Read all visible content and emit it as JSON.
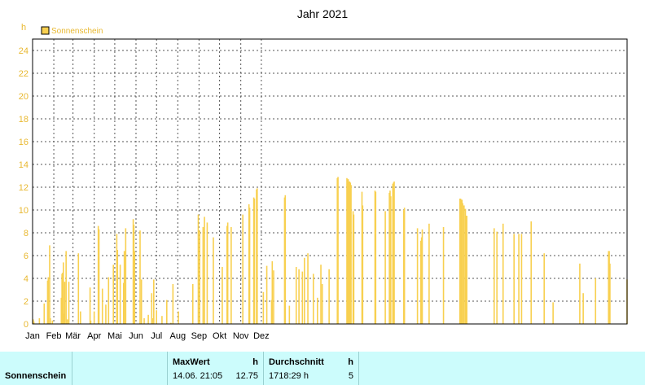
{
  "chart_data": {
    "type": "bar",
    "title": "Jahr 2021",
    "y_unit": "h",
    "legend": {
      "label": "Sonnenschein",
      "position": "top-left"
    },
    "ylim": [
      0,
      25
    ],
    "yticks": [
      0,
      2,
      4,
      6,
      8,
      10,
      12,
      14,
      16,
      18,
      20,
      22,
      24
    ],
    "months": [
      "Jan",
      "Feb",
      "Mär",
      "Apr",
      "Mai",
      "Jun",
      "Jul",
      "Aug",
      "Sep",
      "Okt",
      "Nov",
      "Dez"
    ],
    "grid": true,
    "color": "#f8d050",
    "series": [
      {
        "values": [
          0.4,
          0.2,
          0,
          0,
          0,
          0,
          0,
          0,
          0,
          0.5,
          0,
          0,
          0,
          0,
          0,
          0,
          1.8,
          0,
          0,
          0,
          0,
          3.8,
          4.1,
          0,
          6.9,
          0.5,
          0,
          0,
          0.3,
          0,
          0,
          0,
          0,
          0,
          0,
          0,
          0,
          0,
          0,
          0,
          0,
          2.3,
          4.4,
          4.5,
          5.4,
          0.9,
          3.7,
          0,
          6.4,
          0,
          0.4,
          0,
          3.7,
          0,
          0,
          0,
          0,
          0,
          0,
          0,
          0,
          0,
          0,
          0,
          0,
          0,
          6.2,
          0,
          0,
          1.1,
          0,
          0,
          0,
          0,
          0,
          0,
          0,
          0,
          0,
          0,
          0,
          0,
          0,
          3.2,
          0.3,
          0,
          0,
          0,
          0,
          1.1,
          0,
          0,
          0,
          0,
          0,
          8.6,
          8.3,
          0,
          0,
          0,
          0,
          3.1,
          0,
          0,
          0,
          0,
          1.7,
          0,
          0,
          0,
          4.1,
          0,
          0,
          0,
          0,
          0,
          0,
          5.2,
          0,
          0,
          0,
          0,
          7.9,
          6.5,
          0,
          0,
          0,
          5.2,
          0,
          0,
          0,
          0,
          3.6,
          6.4,
          0,
          8.4,
          0,
          0,
          0,
          0,
          0,
          0,
          0,
          0,
          0,
          0,
          9.2,
          8.7,
          6.4,
          0,
          0,
          0,
          0,
          0,
          0,
          0,
          8.2,
          0,
          3.9,
          0,
          0,
          0,
          0.5,
          0,
          0,
          0,
          0,
          0,
          0.8,
          0,
          0,
          0,
          0,
          2.7,
          0.5,
          0,
          3.9,
          0,
          0,
          0,
          1.2,
          0,
          0,
          0,
          0,
          0,
          0,
          0,
          0.7,
          0,
          0,
          0,
          0,
          0,
          0,
          2.1,
          0,
          0,
          0,
          0,
          0,
          0.1,
          0,
          0,
          3.5,
          0,
          0,
          0,
          0,
          0,
          0,
          0,
          1.1,
          0,
          0,
          0,
          0,
          0,
          0,
          0,
          0,
          0,
          0,
          0,
          0,
          0,
          0,
          0,
          0,
          0,
          0,
          0,
          0,
          3.5,
          0,
          0,
          0,
          0,
          0,
          0,
          0,
          9.6,
          0,
          8.2,
          0,
          0,
          0,
          0,
          8.5,
          0,
          9.4,
          0,
          0,
          0,
          8.9,
          0,
          0,
          0,
          0,
          0,
          0,
          0,
          0,
          7.6,
          0,
          0,
          0,
          0,
          0,
          0,
          0,
          0,
          0,
          0,
          0,
          0,
          5.0,
          0,
          0,
          0,
          0,
          0,
          0,
          8.6,
          8.9,
          0,
          0,
          0,
          0,
          8.5,
          0,
          0,
          0,
          0,
          0,
          0,
          0,
          0,
          0,
          0,
          0,
          0,
          0,
          0,
          0,
          0,
          9.6,
          0,
          0,
          0,
          0,
          0,
          0,
          0,
          0,
          10.5,
          10.2,
          0,
          0,
          0,
          0,
          0,
          11.1,
          11.0,
          0,
          0,
          11.8,
          11.9,
          0,
          0,
          0,
          0,
          0,
          0,
          0,
          0,
          2.8,
          0,
          0,
          0,
          0,
          5.1,
          0,
          0,
          0,
          0,
          0,
          0,
          2.1,
          5.5,
          0,
          4.7,
          0,
          0,
          0,
          0,
          0,
          0,
          0,
          0,
          0,
          0,
          0,
          0,
          0,
          0,
          0,
          11.1,
          11.3,
          0,
          0,
          0,
          0,
          0,
          1.6,
          0,
          0,
          0,
          0,
          0,
          0,
          0,
          0,
          0,
          5.0,
          0,
          0,
          0,
          4.8,
          0,
          0,
          0,
          0,
          4.6,
          0,
          0,
          5.8,
          0,
          0,
          0,
          0,
          6.2,
          0,
          0,
          0,
          0,
          0,
          0,
          0,
          4.4,
          0,
          0,
          0,
          0,
          0,
          2.3,
          0,
          0,
          0,
          0,
          5.2,
          0,
          3.5,
          0,
          0,
          0,
          0,
          0,
          0,
          0,
          0,
          0,
          4.8,
          0,
          0,
          0,
          0,
          0,
          0,
          0,
          0,
          0,
          0,
          0,
          12.8,
          12.9,
          0,
          0,
          0,
          0,
          0,
          0,
          0,
          0,
          0,
          0,
          0,
          0,
          12.8,
          12.7,
          12.7,
          12.5,
          12.5,
          12.4,
          12.2,
          0,
          0,
          9.9,
          9.6,
          0,
          0,
          0,
          0,
          0,
          0,
          0,
          0,
          0,
          0,
          0,
          11.6,
          10.4,
          0,
          0,
          0,
          0,
          0,
          0,
          0,
          0,
          0,
          0,
          0,
          0,
          0,
          0,
          0,
          0,
          0,
          11.7,
          11.6,
          0,
          0,
          0,
          0,
          0,
          0,
          0,
          0,
          0,
          0,
          0,
          0,
          0,
          9.9,
          0,
          0,
          0,
          0,
          0,
          11.5,
          11.7,
          11.2,
          0,
          0,
          12.3,
          12.4,
          12.5,
          0,
          0,
          0,
          0,
          0,
          0,
          0,
          0,
          0,
          0,
          0,
          0,
          0,
          10.0,
          10.2,
          0,
          0,
          0,
          0,
          0,
          0,
          0,
          0,
          0,
          0,
          0,
          0,
          0,
          0,
          0,
          0,
          0,
          0,
          8.4,
          0,
          0,
          0,
          0,
          7.3,
          7.6,
          8.3,
          0,
          0,
          0,
          0,
          0,
          0,
          0,
          0,
          0,
          8.8,
          0,
          0,
          0,
          0,
          0,
          0,
          0,
          0,
          0,
          0,
          0,
          0,
          0,
          0,
          0,
          0,
          0,
          0,
          0,
          0,
          8.5,
          0,
          0,
          0,
          0,
          0,
          0,
          0,
          0,
          0,
          0,
          0,
          0,
          0,
          0,
          0,
          0,
          0,
          0,
          0,
          0,
          0,
          0,
          0,
          11.0,
          11.0,
          10.9,
          10.9,
          10.6,
          0,
          10.4,
          0,
          10.1,
          9.5,
          9.5,
          0,
          0,
          0,
          0,
          0,
          0,
          0,
          0,
          0,
          0,
          0,
          0,
          0,
          0,
          0,
          0,
          0,
          0,
          0,
          0,
          0,
          0,
          0,
          0,
          0,
          0,
          0,
          0,
          0,
          0,
          0,
          0,
          0,
          0,
          0,
          0,
          0,
          0,
          0,
          8.4,
          0,
          0,
          0,
          8.1,
          0,
          0,
          0,
          0,
          0,
          0,
          0,
          0,
          8.8,
          0,
          0,
          0,
          0,
          0,
          0,
          0,
          0,
          0,
          0,
          0,
          0,
          0,
          0,
          0,
          7.9,
          0,
          0,
          0,
          0,
          0,
          0,
          7.9,
          0,
          0,
          0,
          7.9,
          0,
          0,
          0,
          0,
          0,
          0,
          0,
          0,
          0,
          0,
          0,
          0,
          0,
          9.0,
          0,
          0,
          0,
          0,
          0,
          0,
          0,
          0,
          0,
          0,
          0,
          0,
          0,
          0,
          0,
          0,
          0,
          0,
          6.2,
          0,
          0,
          0,
          0,
          0,
          0,
          0,
          0,
          0,
          0,
          0,
          0,
          1.9,
          0,
          0,
          0,
          0,
          0,
          0,
          0,
          0,
          0,
          0,
          0,
          0,
          0,
          0,
          0,
          0,
          0,
          0,
          0,
          0,
          0,
          0,
          0,
          0,
          0,
          0,
          0,
          0,
          0,
          0,
          0,
          0,
          0,
          0,
          0,
          0,
          0,
          0,
          5.3,
          0,
          0,
          0,
          0,
          2.7,
          0,
          0,
          0,
          0,
          0,
          0,
          0,
          0,
          0,
          0,
          0,
          0,
          0,
          0,
          0,
          0,
          0,
          4.0,
          0,
          0,
          0,
          0,
          0,
          0,
          0,
          0,
          0,
          0,
          0,
          0,
          0,
          0,
          0,
          0,
          0,
          0,
          6.4,
          6.4,
          5.3,
          0,
          0,
          0,
          0,
          0,
          0,
          0,
          0,
          0,
          0,
          0,
          0,
          0,
          0,
          0,
          0,
          0,
          0,
          0,
          0,
          0,
          0,
          0,
          0,
          3.9
        ],
        "name": "Sonnenschein"
      }
    ]
  },
  "table": {
    "row_label": "Sonnenschein",
    "max_header": "MaxWert",
    "max_unit": "h",
    "max_date": "14.06.  21:05",
    "max_value": "12.75",
    "avg_header": "Durchschnitt",
    "avg_unit": "h",
    "avg_total": "1718:29 h",
    "avg_value": "5"
  }
}
